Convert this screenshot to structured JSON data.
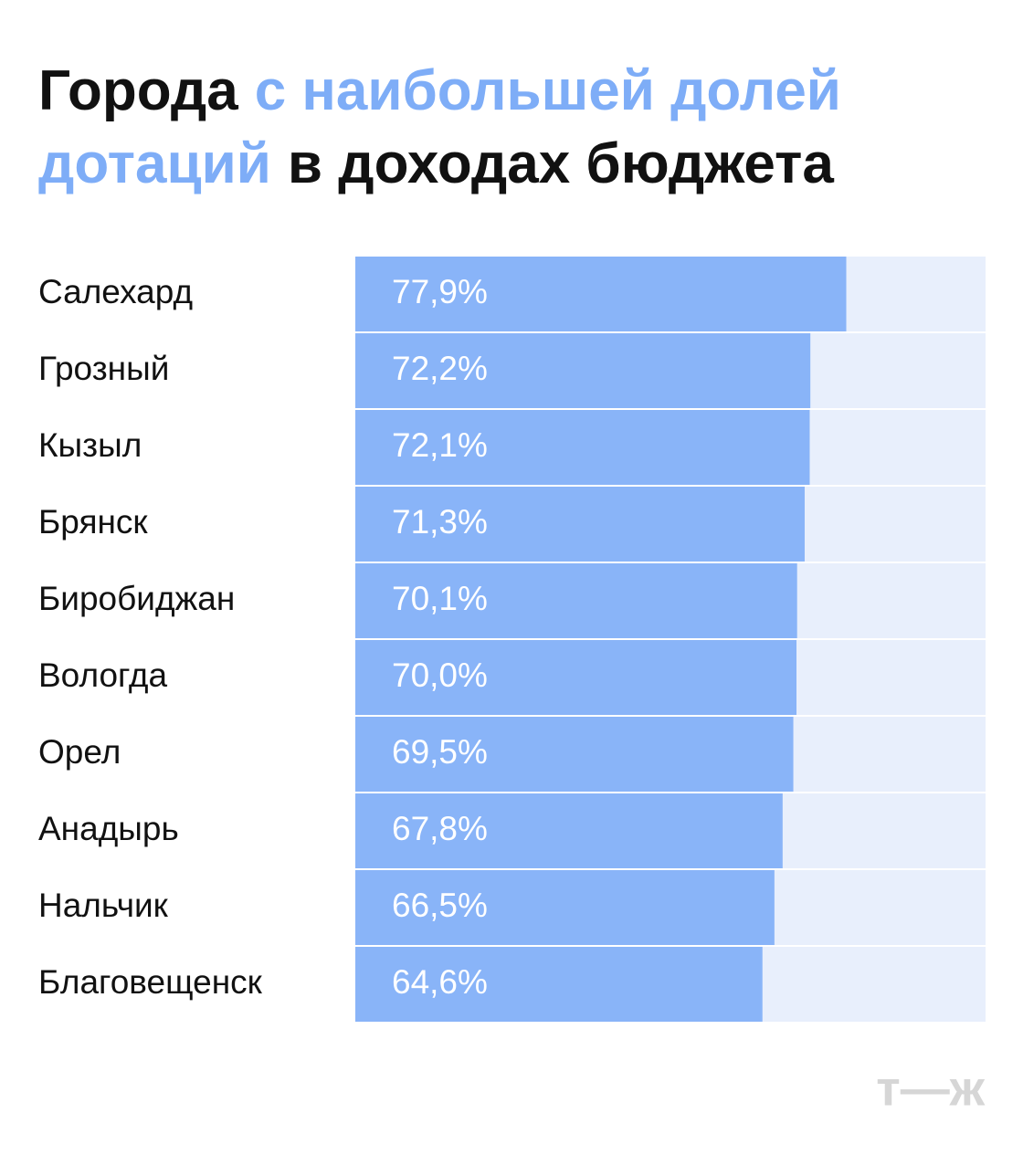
{
  "chart_data": {
    "type": "bar",
    "orientation": "horizontal",
    "title_lines": [
      [
        {
          "text": "Города",
          "color": "#111111"
        },
        {
          "text": "с наибольшей долей",
          "color": "#7eadf7"
        }
      ],
      [
        {
          "text": "дотаций",
          "color": "#7eadf7"
        },
        {
          "text": "в доходах бюджета",
          "color": "#111111"
        }
      ]
    ],
    "categories": [
      "Салехард",
      "Грозный",
      "Кызыл",
      "Брянск",
      "Биробиджан",
      "Вологда",
      "Орел",
      "Анадырь",
      "Нальчик",
      "Благовещенск"
    ],
    "values": [
      77.9,
      72.2,
      72.1,
      71.3,
      70.1,
      70.0,
      69.5,
      67.8,
      66.5,
      64.6
    ],
    "value_labels": [
      "77,9%",
      "72,2%",
      "72,1%",
      "71,3%",
      "70,1%",
      "70,0%",
      "69,5%",
      "67,8%",
      "66,5%",
      "64,6%"
    ],
    "color": "#89b4f8",
    "track_color": "#e8effc",
    "xlim": [
      0,
      100
    ],
    "logo": "т—ж"
  }
}
